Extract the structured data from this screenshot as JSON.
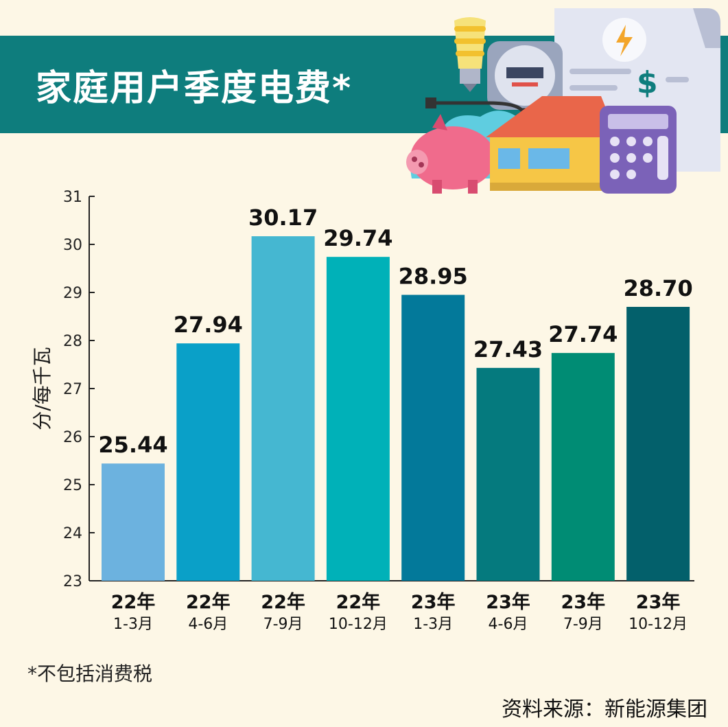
{
  "header": {
    "title": "家庭用户季度电费*"
  },
  "chart_data": {
    "type": "bar",
    "title": "家庭用户季度电费*",
    "ylabel": "分/每千瓦",
    "xlabel": "",
    "ylim": [
      23,
      31
    ],
    "yticks": [
      23,
      24,
      25,
      26,
      27,
      28,
      29,
      30,
      31
    ],
    "categories": [
      {
        "year": "22年",
        "months": "1-3月"
      },
      {
        "year": "22年",
        "months": "4-6月"
      },
      {
        "year": "22年",
        "months": "7-9月"
      },
      {
        "year": "22年",
        "months": "10-12月"
      },
      {
        "year": "23年",
        "months": "1-3月"
      },
      {
        "year": "23年",
        "months": "4-6月"
      },
      {
        "year": "23年",
        "months": "7-9月"
      },
      {
        "year": "23年",
        "months": "10-12月"
      }
    ],
    "values": [
      25.44,
      27.94,
      30.17,
      29.74,
      28.95,
      27.43,
      27.74,
      28.7
    ],
    "value_labels": [
      "25.44",
      "27.94",
      "30.17",
      "29.74",
      "28.95",
      "27.43",
      "27.74",
      "28.70"
    ],
    "colors": [
      "#6cb2df",
      "#0aa0c8",
      "#45b7d1",
      "#00b1b8",
      "#03799a",
      "#057a7e",
      "#008c74",
      "#03606b"
    ],
    "grid": false,
    "legend": "none"
  },
  "footnote": "*不包括消费税",
  "source": "资料来源：新能源集团"
}
